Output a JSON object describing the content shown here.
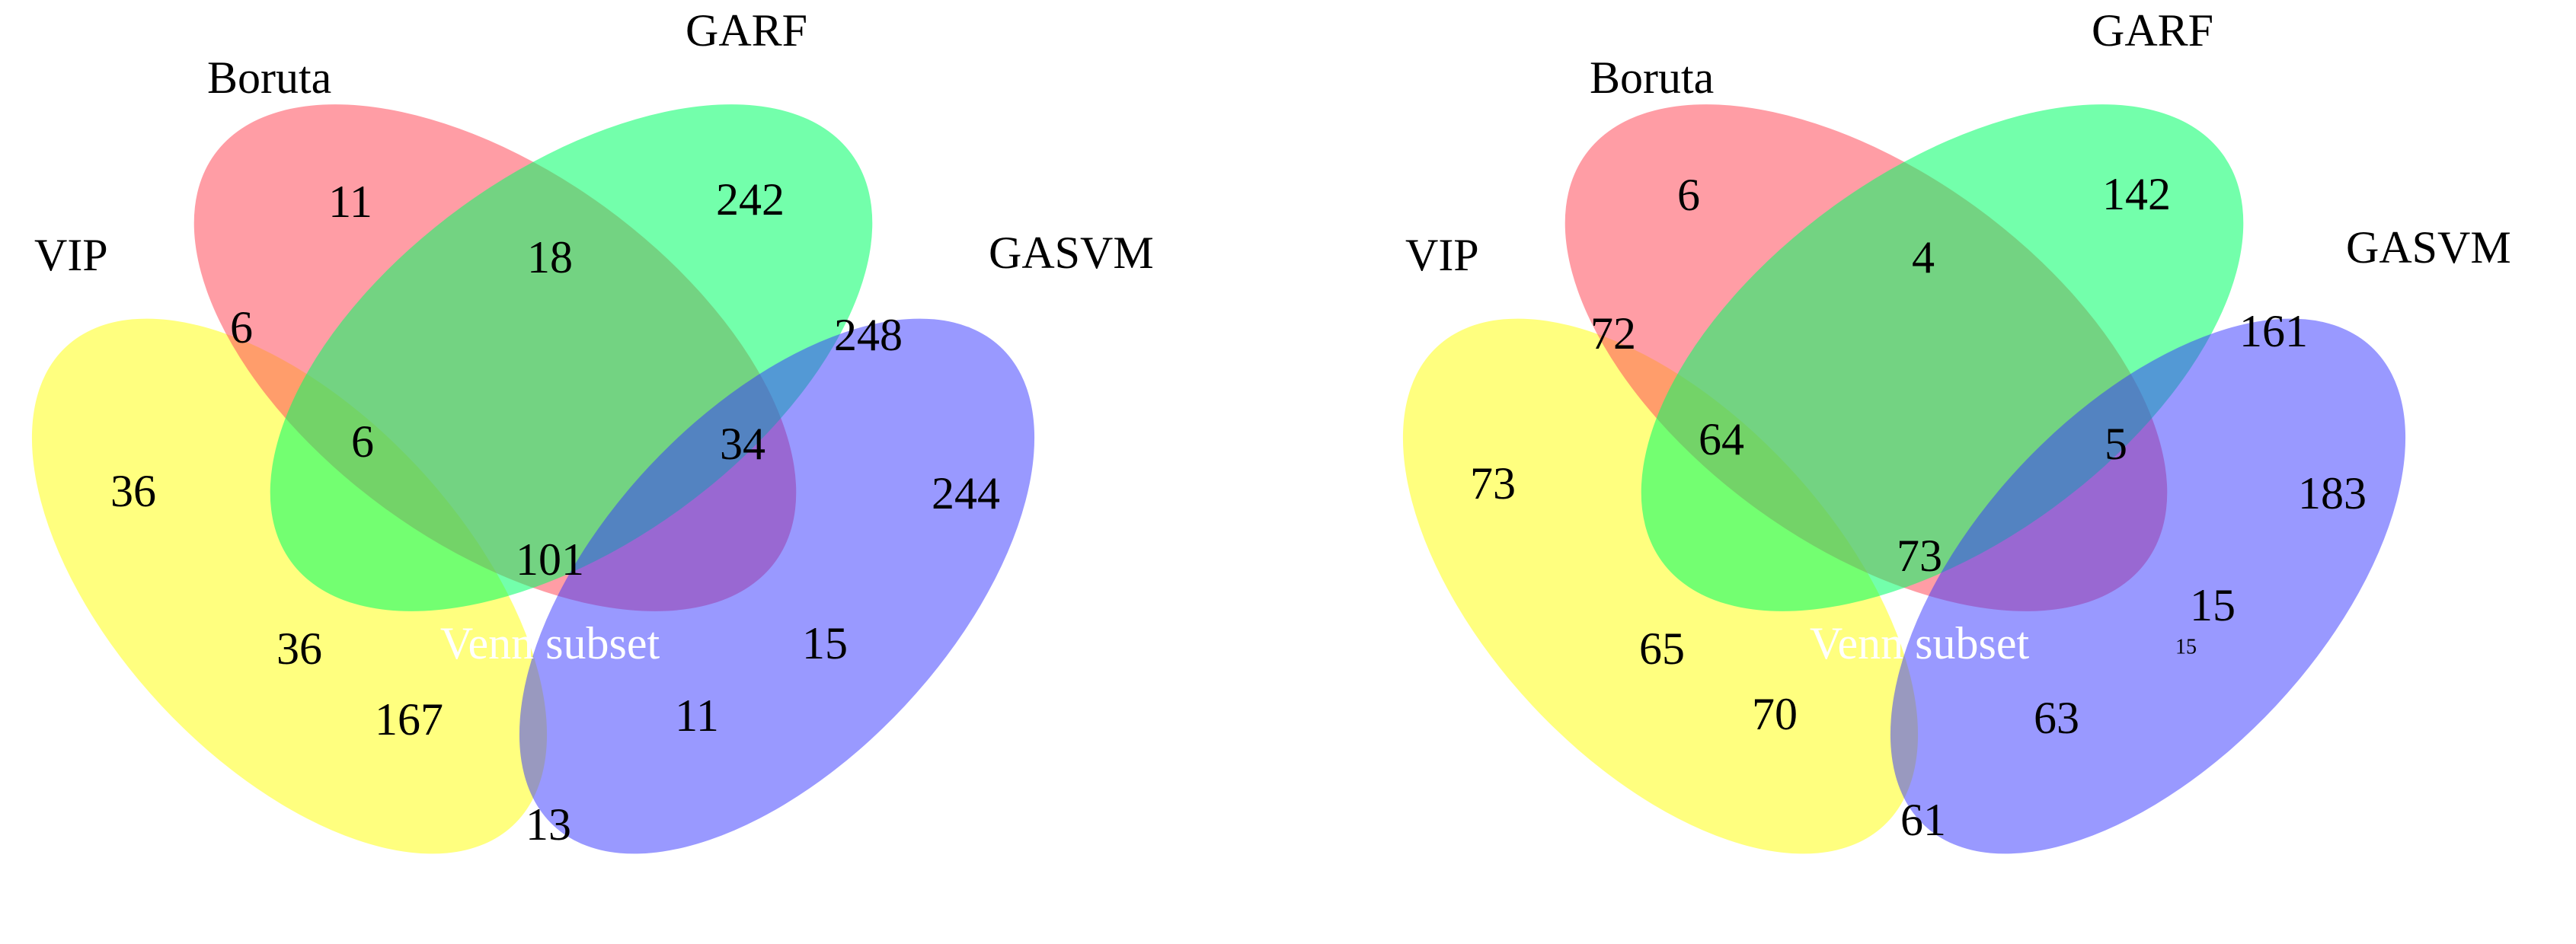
{
  "colors": {
    "VIP": "#ffff00",
    "Boruta": "#ff4d5b",
    "GARF": "#00ff66",
    "GASVM": "#3333ff"
  },
  "diagrams": [
    {
      "labels": {
        "vip": "VIP",
        "boruta": "Boruta",
        "garf": "GARF",
        "gasvm": "GASVM"
      },
      "center_text": "Venn subset",
      "regions": {
        "vip_only": "36",
        "boruta_only": "11",
        "garf_only": "242",
        "gasvm_only": "244",
        "vip_boruta": "6",
        "boruta_garf": "18",
        "garf_gasvm": "248",
        "vip_boruta_garf": "6",
        "boruta_garf_gasvm": "34",
        "all_four": "101",
        "vip_garf": "36",
        "boruta_gasvm": "15",
        "vip_garf_gasvm": "167",
        "vip_boruta_gasvm": "11",
        "vip_gasvm": "13"
      },
      "extra": ""
    },
    {
      "labels": {
        "vip": "VIP",
        "boruta": "Boruta",
        "garf": "GARF",
        "gasvm": "GASVM"
      },
      "center_text": "Venn subset",
      "regions": {
        "vip_only": "73",
        "boruta_only": "6",
        "garf_only": "142",
        "gasvm_only": "183",
        "vip_boruta": "72",
        "boruta_garf": "4",
        "garf_gasvm": "161",
        "vip_boruta_garf": "64",
        "boruta_garf_gasvm": "5",
        "all_four": "73",
        "vip_garf": "65",
        "boruta_gasvm": "15",
        "vip_garf_gasvm": "70",
        "vip_boruta_gasvm": "63",
        "vip_gasvm": "61"
      },
      "extra": "15"
    }
  ]
}
